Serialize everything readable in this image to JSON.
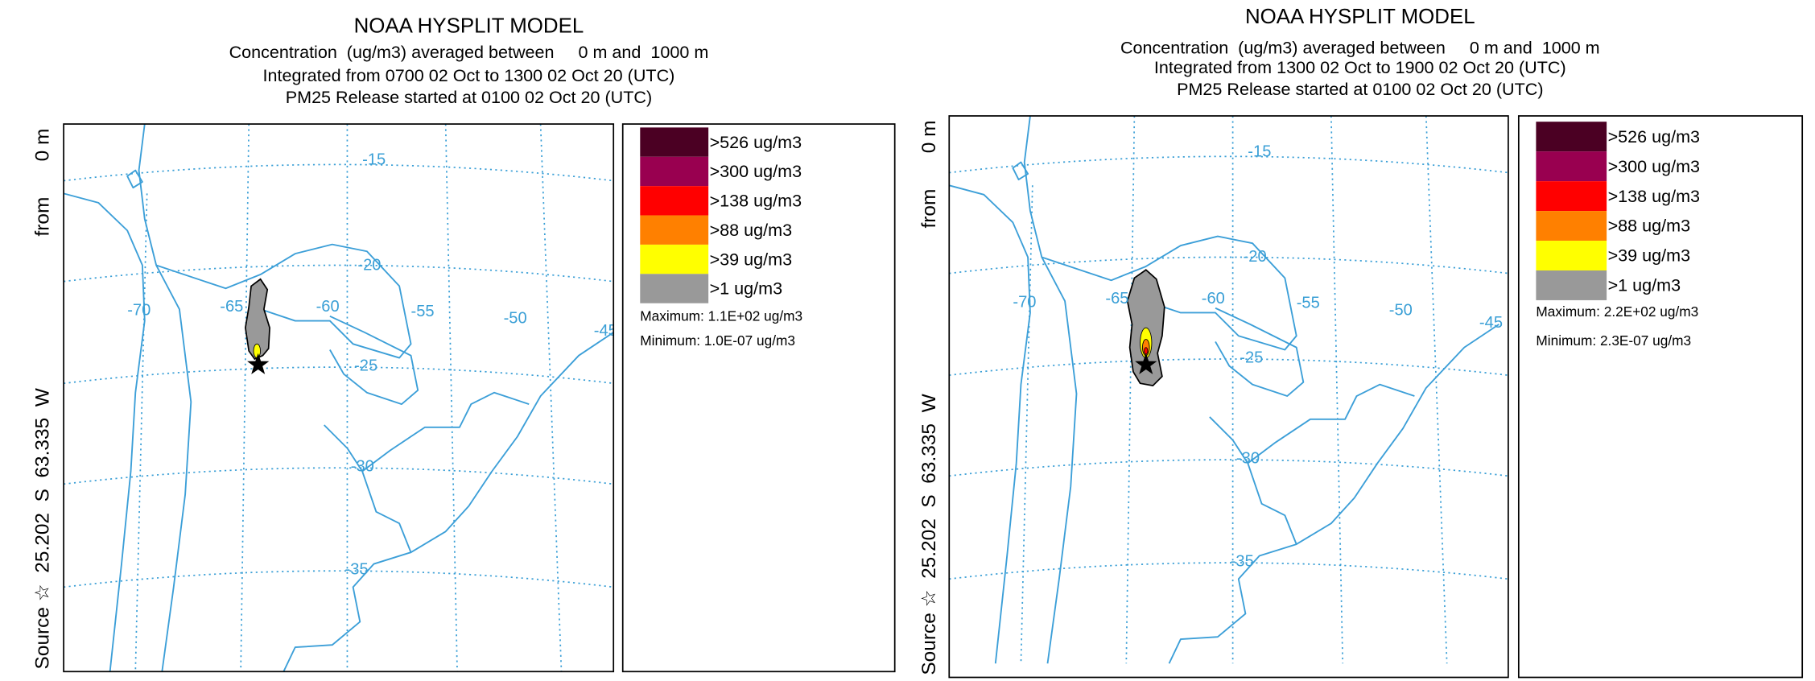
{
  "panels": [
    {
      "title": "NOAA HYSPLIT MODEL",
      "subtitle_lines": [
        "Concentration  (ug/m3) averaged between     0 m and  1000 m",
        "Integrated from 0700 02 Oct to 1300 02 Oct 20 (UTC)",
        "PM25 Release started at 0100 02 Oct 20 (UTC)"
      ],
      "side_label": [
        "Source ☆  25.202  S  63.335  W",
        "from",
        "0 m"
      ],
      "legend": [
        {
          "label": ">526 ug/m3",
          "color": "#4b0023"
        },
        {
          "label": ">300 ug/m3",
          "color": "#990050"
        },
        {
          "label": ">138 ug/m3",
          "color": "#ff0000"
        },
        {
          "label": ">88 ug/m3",
          "color": "#ff8000"
        },
        {
          "label": ">39 ug/m3",
          "color": "#ffff00"
        },
        {
          "label": ">1 ug/m3",
          "color": "#999999"
        }
      ],
      "maximum": "Maximum: 1.1E+02 ug/m3",
      "minimum": "Minimum: 1.0E-07 ug/m3",
      "longitude_labels": [
        "-70",
        "-65",
        "-60",
        "-55",
        "-50",
        "-45"
      ],
      "latitude_labels": [
        "-15",
        "-20",
        "-25",
        "-30",
        "-35"
      ]
    },
    {
      "title": "NOAA HYSPLIT MODEL",
      "subtitle_lines": [
        "Concentration  (ug/m3) averaged between     0 m and  1000 m",
        "Integrated from 1300 02 Oct to 1900 02 Oct 20 (UTC)",
        "PM25 Release started at 0100 02 Oct 20 (UTC)"
      ],
      "side_label": [
        "Source ☆  25.202  S  63.335  W",
        "from",
        "0 m"
      ],
      "legend": [
        {
          "label": ">526 ug/m3",
          "color": "#4b0023"
        },
        {
          "label": ">300 ug/m3",
          "color": "#990050"
        },
        {
          "label": ">138 ug/m3",
          "color": "#ff0000"
        },
        {
          "label": ">88 ug/m3",
          "color": "#ff8000"
        },
        {
          "label": ">39 ug/m3",
          "color": "#ffff00"
        },
        {
          "label": ">1 ug/m3",
          "color": "#999999"
        }
      ],
      "maximum": "Maximum: 2.2E+02 ug/m3",
      "minimum": "Minimum: 2.3E-07 ug/m3",
      "longitude_labels": [
        "-70",
        "-65",
        "-60",
        "-55",
        "-50",
        "-45"
      ],
      "latitude_labels": [
        "-15",
        "-20",
        "-25",
        "-30",
        "-35"
      ]
    }
  ]
}
